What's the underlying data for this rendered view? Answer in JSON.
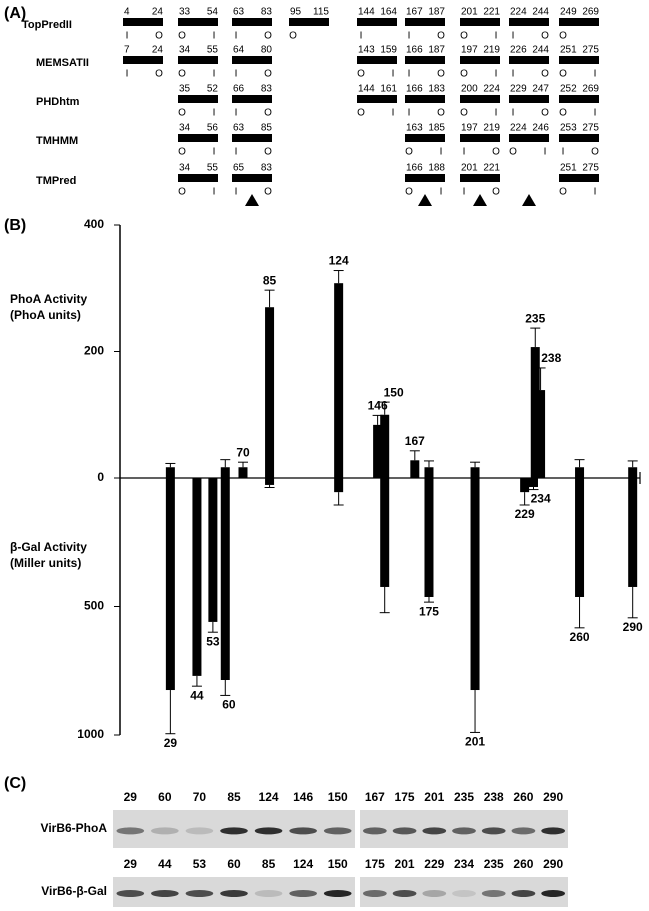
{
  "panel_labels": [
    "(A)",
    "(B)",
    "(C)"
  ],
  "topology_predictions": {
    "rows": [
      {
        "name": "TopPredII",
        "segments": [
          {
            "start": 4,
            "end": 24,
            "sides": [
              "I",
              "O"
            ]
          },
          {
            "start": 33,
            "end": 54,
            "sides": [
              "O",
              "I"
            ]
          },
          {
            "start": 63,
            "end": 83,
            "sides": [
              "I",
              "O"
            ]
          },
          {
            "start": 95,
            "end": 115,
            "sides": [
              "O",
              null
            ]
          },
          {
            "start": 144,
            "end": 164,
            "sides": [
              "I",
              null
            ]
          },
          {
            "start": 167,
            "end": 187,
            "sides": [
              "I",
              "O"
            ]
          },
          {
            "start": 201,
            "end": 221,
            "sides": [
              "O",
              "I"
            ]
          },
          {
            "start": 224,
            "end": 244,
            "sides": [
              "I",
              "O"
            ]
          },
          {
            "start": 249,
            "end": 269,
            "sides": [
              "O",
              null
            ]
          }
        ]
      },
      {
        "name": "MEMSATII",
        "segments": [
          {
            "start": 7,
            "end": 24,
            "sides": [
              "I",
              "O"
            ]
          },
          {
            "start": 34,
            "end": 55,
            "sides": [
              "O",
              "I"
            ]
          },
          {
            "start": 64,
            "end": 80,
            "sides": [
              "I",
              "O"
            ]
          },
          null,
          {
            "start": 143,
            "end": 159,
            "sides": [
              "O",
              "I"
            ]
          },
          {
            "start": 166,
            "end": 187,
            "sides": [
              "I",
              "O"
            ]
          },
          {
            "start": 197,
            "end": 219,
            "sides": [
              "O",
              "I"
            ]
          },
          {
            "start": 226,
            "end": 244,
            "sides": [
              "I",
              "O"
            ]
          },
          {
            "start": 251,
            "end": 275,
            "sides": [
              "O",
              "I"
            ]
          }
        ]
      },
      {
        "name": "PHDhtm",
        "segments": [
          null,
          {
            "start": 35,
            "end": 52,
            "sides": [
              "O",
              "I"
            ]
          },
          {
            "start": 66,
            "end": 83,
            "sides": [
              "I",
              "O"
            ]
          },
          null,
          {
            "start": 144,
            "end": 161,
            "sides": [
              "O",
              "I"
            ]
          },
          {
            "start": 166,
            "end": 183,
            "sides": [
              "I",
              "O"
            ]
          },
          {
            "start": 200,
            "end": 224,
            "sides": [
              "O",
              "I"
            ]
          },
          {
            "start": 229,
            "end": 247,
            "sides": [
              "I",
              "O"
            ]
          },
          {
            "start": 252,
            "end": 269,
            "sides": [
              "O",
              "I"
            ]
          }
        ]
      },
      {
        "name": "TMHMM",
        "segments": [
          null,
          {
            "start": 34,
            "end": 56,
            "sides": [
              "O",
              "I"
            ]
          },
          {
            "start": 63,
            "end": 85,
            "sides": [
              "I",
              "O"
            ]
          },
          null,
          null,
          {
            "start": 163,
            "end": 185,
            "sides": [
              "O",
              "I"
            ]
          },
          {
            "start": 197,
            "end": 219,
            "sides": [
              "I",
              "O"
            ]
          },
          {
            "start": 224,
            "end": 246,
            "sides": [
              "O",
              "I"
            ]
          },
          {
            "start": 253,
            "end": 275,
            "sides": [
              "I",
              "O"
            ]
          }
        ]
      },
      {
        "name": "TMPred",
        "segments": [
          null,
          {
            "start": 34,
            "end": 55,
            "sides": [
              "O",
              "I"
            ]
          },
          {
            "start": 65,
            "end": 83,
            "sides": [
              "I",
              "O"
            ]
          },
          null,
          null,
          {
            "start": 166,
            "end": 188,
            "sides": [
              "O",
              "I"
            ]
          },
          {
            "start": 201,
            "end": 221,
            "sides": [
              "I",
              "O"
            ]
          },
          null,
          {
            "start": 251,
            "end": 275,
            "sides": [
              "O",
              "I"
            ]
          }
        ]
      }
    ]
  },
  "chart_data": {
    "type": "bar",
    "ylabel": [
      "PhoA Activity",
      "(PhoA units)"
    ],
    "y2label": [
      "β-Gal Activity",
      "(Miller units)"
    ],
    "x": [
      29,
      44,
      53,
      60,
      70,
      85,
      124,
      146,
      150,
      167,
      175,
      201,
      229,
      234,
      235,
      238,
      260,
      290
    ],
    "xlim": [
      0,
      293
    ],
    "ylim": [
      0,
      400
    ],
    "yticks": [
      0,
      200,
      400
    ],
    "y2lim": [
      0,
      1000
    ],
    "y2ticks": [
      500,
      1000
    ],
    "y2_inverted": true,
    "series": [
      {
        "color": "#000000",
        "values": [
          17,
          null,
          null,
          17,
          17,
          270,
          308,
          84,
          100,
          28,
          17,
          17,
          null,
          null,
          207,
          139,
          17,
          17
        ],
        "errors": [
          6,
          null,
          null,
          12,
          8,
          27,
          20,
          15,
          20,
          15,
          10,
          8,
          null,
          null,
          30,
          35,
          12,
          10
        ]
      },
      {
        "color": "#000000",
        "axis": "y2",
        "values": [
          825,
          770,
          560,
          786,
          null,
          27,
          55,
          null,
          424,
          null,
          463,
          825,
          55,
          35,
          null,
          null,
          463,
          424
        ],
        "errors": [
          170,
          40,
          40,
          60,
          null,
          10,
          50,
          null,
          100,
          null,
          20,
          165,
          50,
          10,
          null,
          null,
          120,
          120
        ]
      }
    ]
  },
  "blots": {
    "rows": [
      {
        "name": "VirB6-PhoA",
        "lanes": [
          [
            29,
            60,
            70,
            85,
            124,
            146,
            150
          ],
          [
            167,
            175,
            201,
            235,
            238,
            260,
            290
          ]
        ]
      },
      {
        "name": "VirB6-β-Gal",
        "lanes": [
          [
            29,
            44,
            53,
            60,
            85,
            124,
            150
          ],
          [
            175,
            201,
            229,
            234,
            235,
            260,
            290
          ]
        ]
      }
    ]
  }
}
